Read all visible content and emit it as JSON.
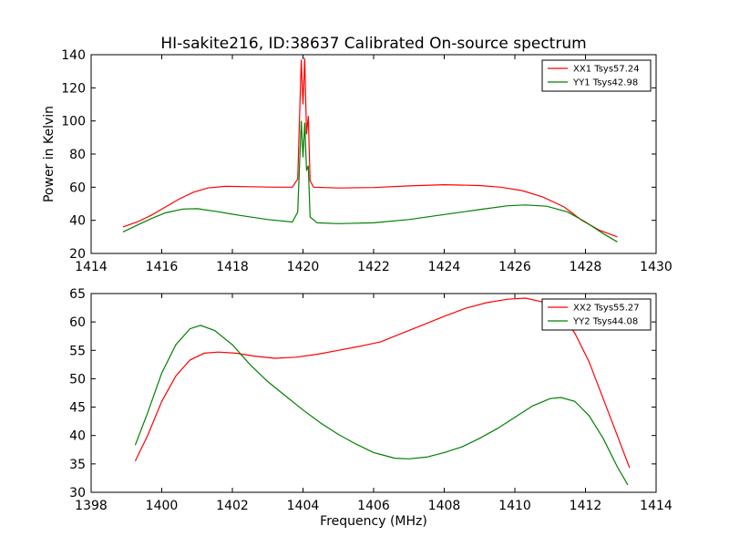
{
  "chart_data": [
    {
      "type": "line",
      "title": "HI-sakite216, ID:38637 Calibrated On-source spectrum",
      "xlabel": "",
      "ylabel": "Power in Kelvin",
      "xlim": [
        1414,
        1430
      ],
      "ylim": [
        20,
        140
      ],
      "xticks": [
        1414,
        1416,
        1418,
        1420,
        1422,
        1424,
        1426,
        1428,
        1430
      ],
      "yticks": [
        20,
        40,
        60,
        80,
        100,
        120,
        140
      ],
      "grid": false,
      "legend": "top-right",
      "series": [
        {
          "name": "XX1 Tsys57.24",
          "color": "#ff0000",
          "points": [
            [
              1414.9,
              36
            ],
            [
              1415.3,
              39
            ],
            [
              1415.7,
              43
            ],
            [
              1416.1,
              48
            ],
            [
              1416.5,
              53
            ],
            [
              1416.9,
              57
            ],
            [
              1417.3,
              59.5
            ],
            [
              1417.8,
              60.5
            ],
            [
              1418.5,
              60.3
            ],
            [
              1419.2,
              60
            ],
            [
              1419.7,
              60
            ],
            [
              1419.85,
              65
            ],
            [
              1419.95,
              137
            ],
            [
              1420.0,
              110
            ],
            [
              1420.05,
              138
            ],
            [
              1420.1,
              92
            ],
            [
              1420.15,
              103
            ],
            [
              1420.2,
              64
            ],
            [
              1420.3,
              60
            ],
            [
              1421,
              59.5
            ],
            [
              1422,
              59.8
            ],
            [
              1423,
              60.8
            ],
            [
              1424,
              61.5
            ],
            [
              1425,
              61
            ],
            [
              1425.6,
              60
            ],
            [
              1426.2,
              58
            ],
            [
              1426.8,
              54
            ],
            [
              1427.4,
              48
            ],
            [
              1427.9,
              40
            ],
            [
              1428.4,
              34
            ],
            [
              1428.9,
              30
            ]
          ]
        },
        {
          "name": "YY1 Tsys42.98",
          "color": "#008000",
          "points": [
            [
              1414.9,
              33
            ],
            [
              1415.3,
              37
            ],
            [
              1415.7,
              41
            ],
            [
              1416.1,
              44.5
            ],
            [
              1416.6,
              46.8
            ],
            [
              1417.0,
              47
            ],
            [
              1417.5,
              45.5
            ],
            [
              1418.2,
              43
            ],
            [
              1419,
              40.5
            ],
            [
              1419.7,
              39
            ],
            [
              1419.85,
              45
            ],
            [
              1419.95,
              100
            ],
            [
              1420.0,
              78
            ],
            [
              1420.05,
              99
            ],
            [
              1420.1,
              70
            ],
            [
              1420.15,
              73
            ],
            [
              1420.2,
              42
            ],
            [
              1420.4,
              38.5
            ],
            [
              1421,
              38
            ],
            [
              1422,
              38.5
            ],
            [
              1423,
              40.5
            ],
            [
              1424,
              43.5
            ],
            [
              1425,
              46.5
            ],
            [
              1425.8,
              48.8
            ],
            [
              1426.3,
              49.3
            ],
            [
              1426.9,
              48.5
            ],
            [
              1427.5,
              45
            ],
            [
              1428.0,
              39
            ],
            [
              1428.5,
              32
            ],
            [
              1428.9,
              27
            ]
          ]
        }
      ]
    },
    {
      "type": "line",
      "title": "",
      "xlabel": "Frequency (MHz)",
      "ylabel": "",
      "xlim": [
        1398,
        1414
      ],
      "ylim": [
        30,
        65
      ],
      "xticks": [
        1398,
        1400,
        1402,
        1404,
        1406,
        1408,
        1410,
        1412,
        1414
      ],
      "yticks": [
        30,
        35,
        40,
        45,
        50,
        55,
        60,
        65
      ],
      "grid": false,
      "legend": "top-right",
      "series": [
        {
          "name": "XX2 Tsys55.27",
          "color": "#ff0000",
          "points": [
            [
              1399.25,
              35.5
            ],
            [
              1399.6,
              40
            ],
            [
              1400,
              46
            ],
            [
              1400.4,
              50.5
            ],
            [
              1400.8,
              53.3
            ],
            [
              1401.2,
              54.5
            ],
            [
              1401.6,
              54.7
            ],
            [
              1402.1,
              54.5
            ],
            [
              1402.6,
              54
            ],
            [
              1403.2,
              53.6
            ],
            [
              1403.8,
              53.8
            ],
            [
              1404.4,
              54.3
            ],
            [
              1405,
              55
            ],
            [
              1405.6,
              55.7
            ],
            [
              1406.2,
              56.5
            ],
            [
              1406.8,
              58
            ],
            [
              1407.4,
              59.5
            ],
            [
              1408,
              61
            ],
            [
              1408.6,
              62.4
            ],
            [
              1409.2,
              63.4
            ],
            [
              1409.8,
              64
            ],
            [
              1410.3,
              64.2
            ],
            [
              1410.8,
              63.5
            ],
            [
              1411.3,
              61.5
            ],
            [
              1411.7,
              58
            ],
            [
              1412.1,
              53
            ],
            [
              1412.5,
              46.5
            ],
            [
              1412.9,
              40
            ],
            [
              1413.25,
              34.3
            ]
          ]
        },
        {
          "name": "YY2 Tsys44.08",
          "color": "#008000",
          "points": [
            [
              1399.25,
              38.3
            ],
            [
              1399.6,
              44
            ],
            [
              1400,
              51
            ],
            [
              1400.4,
              56
            ],
            [
              1400.8,
              58.8
            ],
            [
              1401.1,
              59.4
            ],
            [
              1401.5,
              58.5
            ],
            [
              1402,
              56
            ],
            [
              1402.5,
              52.5
            ],
            [
              1403,
              49.5
            ],
            [
              1403.5,
              47
            ],
            [
              1404,
              44.5
            ],
            [
              1404.5,
              42.2
            ],
            [
              1405,
              40.2
            ],
            [
              1405.5,
              38.5
            ],
            [
              1406,
              37
            ],
            [
              1406.3,
              36.5
            ],
            [
              1406.6,
              36
            ],
            [
              1407,
              35.9
            ],
            [
              1407.5,
              36.2
            ],
            [
              1408,
              37
            ],
            [
              1408.5,
              38
            ],
            [
              1409,
              39.5
            ],
            [
              1409.5,
              41.2
            ],
            [
              1410,
              43.2
            ],
            [
              1410.5,
              45.2
            ],
            [
              1411,
              46.5
            ],
            [
              1411.3,
              46.7
            ],
            [
              1411.7,
              46
            ],
            [
              1412.1,
              43.5
            ],
            [
              1412.5,
              39.5
            ],
            [
              1412.9,
              34.5
            ],
            [
              1413.2,
              31.3
            ]
          ]
        }
      ]
    }
  ]
}
